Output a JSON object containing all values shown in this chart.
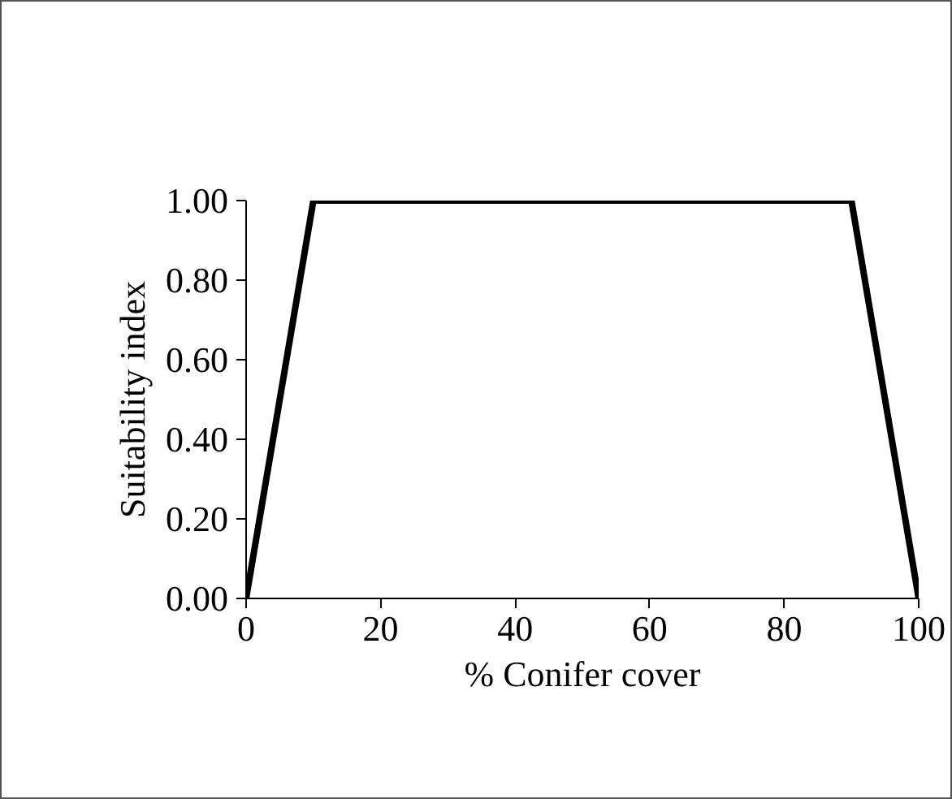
{
  "chart_data": {
    "type": "line",
    "xlabel": "% Conifer cover",
    "ylabel": "Suitability index",
    "x": [
      0,
      10,
      90,
      100
    ],
    "series": [
      {
        "color": "#000000",
        "values": [
          0,
          1,
          1,
          0
        ]
      }
    ],
    "xlim": [
      0,
      100
    ],
    "ylim": [
      0,
      1
    ],
    "xticks": [
      0,
      20,
      40,
      60,
      80,
      100
    ],
    "yticks": [
      {
        "value": 0,
        "label": "0.00"
      },
      {
        "value": 0.2,
        "label": "0.20"
      },
      {
        "value": 0.4,
        "label": "0.40"
      },
      {
        "value": 0.6,
        "label": "0.60"
      },
      {
        "value": 0.8,
        "label": "0.80"
      },
      {
        "value": 1,
        "label": "1.00"
      }
    ],
    "grid": false,
    "marker": "none",
    "line_style": "solid"
  }
}
